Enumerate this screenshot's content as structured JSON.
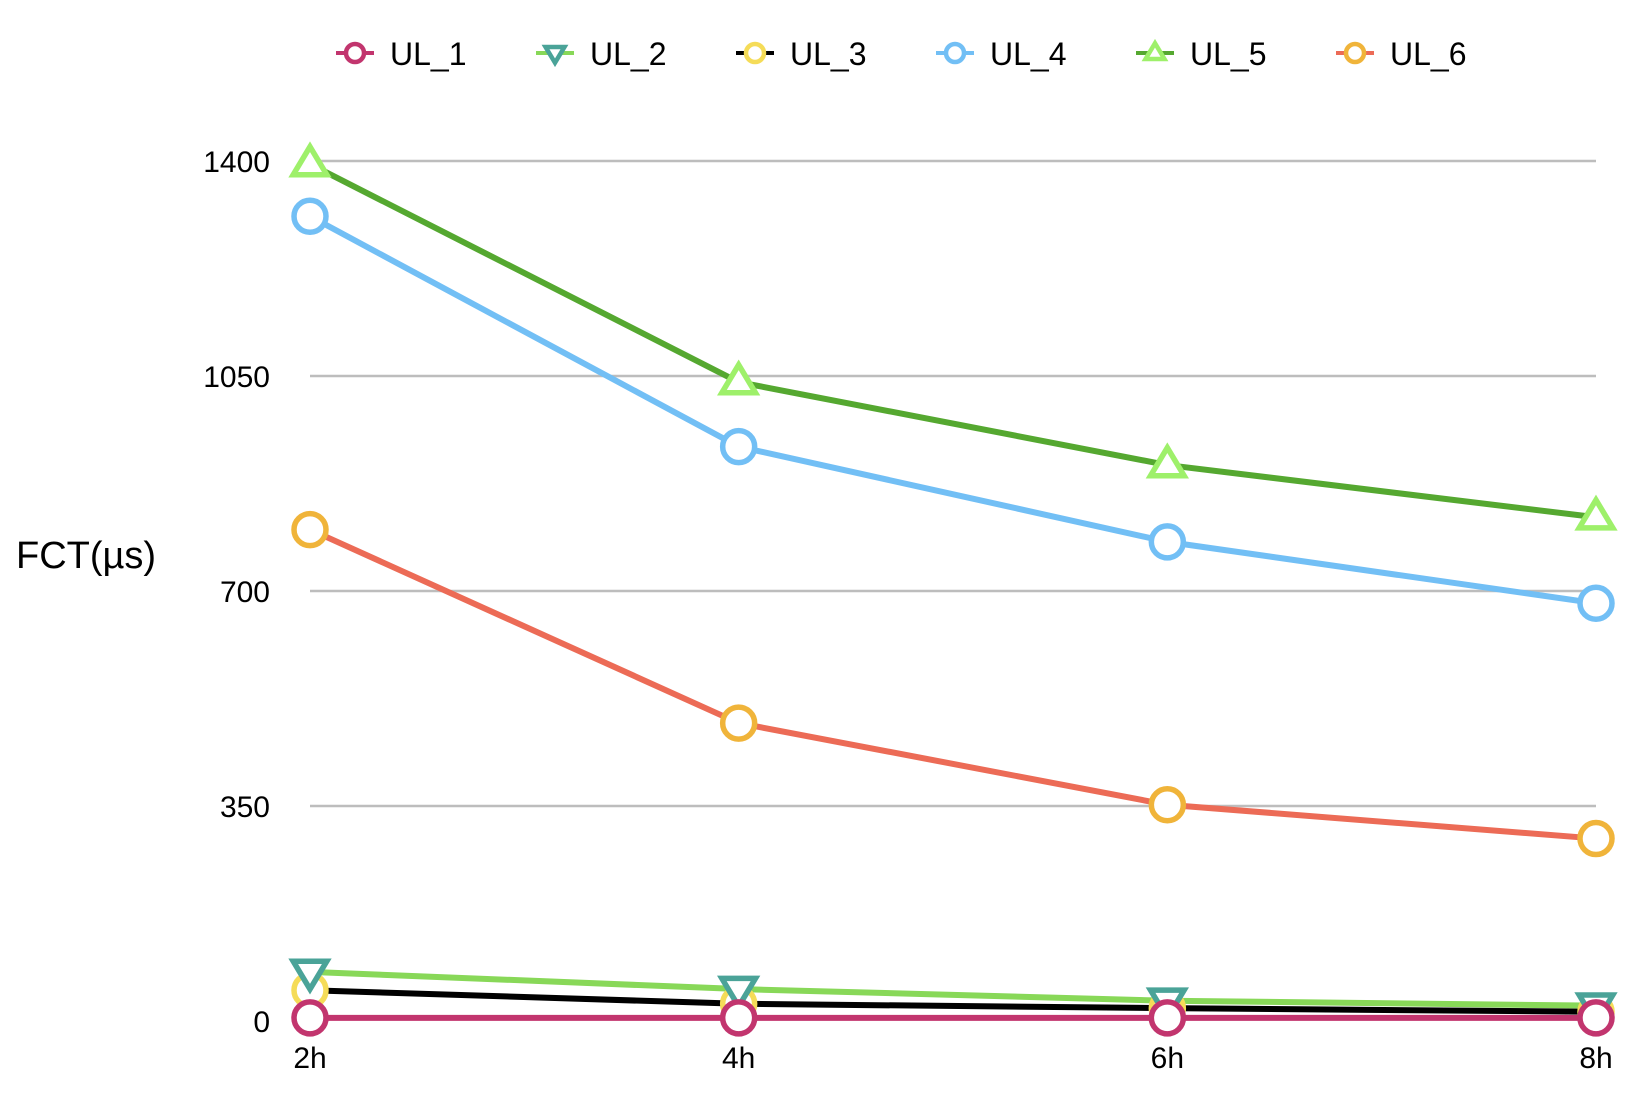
{
  "chart_data": {
    "type": "line",
    "title": "",
    "xlabel": "",
    "ylabel": "FCT(µs)",
    "categories": [
      "2h",
      "4h",
      "6h",
      "8h"
    ],
    "y_ticks": [
      "0",
      "350",
      "700",
      "1050",
      "1400"
    ],
    "ylim": [
      0,
      1400
    ],
    "grid": true,
    "legend_position": "top",
    "series": [
      {
        "name": "UL_1",
        "line_color": "#C2356E",
        "marker_color": "#C2356E",
        "marker": "circle",
        "values": [
          5,
          5,
          5,
          5
        ]
      },
      {
        "name": "UL_2",
        "line_color": "#88D858",
        "marker_color": "#4AA398",
        "marker": "triangle-down",
        "values": [
          80,
          52,
          33,
          25
        ]
      },
      {
        "name": "UL_3",
        "line_color": "#000000",
        "marker_color": "#F5DC58",
        "marker": "circle",
        "values": [
          50,
          28,
          21,
          15
        ]
      },
      {
        "name": "UL_4",
        "line_color": "#72BFF5",
        "marker_color": "#72BFF5",
        "marker": "circle",
        "values": [
          1310,
          935,
          780,
          680
        ]
      },
      {
        "name": "UL_5",
        "line_color": "#55A830",
        "marker_color": "#9EF06A",
        "marker": "triangle-up",
        "values": [
          1395,
          1040,
          905,
          820
        ]
      },
      {
        "name": "UL_6",
        "line_color": "#EC6B56",
        "marker_color": "#F0B43A",
        "marker": "circle",
        "values": [
          800,
          485,
          352,
          297
        ]
      }
    ]
  }
}
